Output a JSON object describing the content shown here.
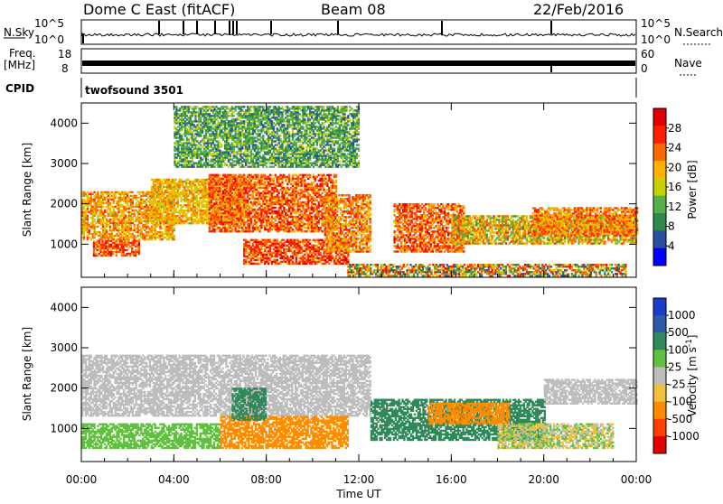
{
  "header": {
    "station": "Dome C East (fitACF)",
    "beam": "Beam 08",
    "date": "22/Feb/2016"
  },
  "strips": {
    "nsky_label": "N.Sky",
    "nsky_ticks": [
      "10^5",
      "10^0"
    ],
    "nsearch_label": "N.Search",
    "nsearch_ticks": [
      "10^5",
      "10^0"
    ],
    "freq_label": "Freq.",
    "freq_unit": "[MHz]",
    "freq_ticks": [
      "18",
      "8"
    ],
    "nave_label": "Nave",
    "nave_ticks": [
      "60",
      "0"
    ],
    "cpid_label": "CPID",
    "cpid_value": "twofsound 3501"
  },
  "colors": {
    "power": [
      "#0000ff",
      "#2a4fa0",
      "#2f8a4a",
      "#56b04a",
      "#c8d200",
      "#ffb000",
      "#ff6a00",
      "#ff2000",
      "#e00000"
    ],
    "velocity": [
      "#1a3cc8",
      "#2f5aa8",
      "#2f8a5a",
      "#62c040",
      "#bdbdbd",
      "#f0c040",
      "#ff8c00",
      "#ff4000",
      "#e00000"
    ]
  },
  "chart_data": [
    {
      "type": "heatmap",
      "title": "",
      "xlabel": "",
      "ylabel": "Slant Range [km]",
      "x_ticks": [
        "00:00",
        "04:00",
        "08:00",
        "12:00",
        "16:00",
        "20:00",
        "00:00"
      ],
      "y_ticks": [
        "4000",
        "3000",
        "2000",
        "1000"
      ],
      "xlim_hours": [
        0,
        24
      ],
      "ylim_km": [
        180,
        4500
      ],
      "colorbar_label": "Power [dB]",
      "colorbar_ticks": [
        "28",
        "24",
        "20",
        "16",
        "12",
        "8",
        "4"
      ],
      "colorbar_range": [
        0,
        32
      ],
      "regions": [
        {
          "t0": 0.0,
          "t1": 4.0,
          "r0": 1100,
          "r1": 2300,
          "v0": 14,
          "v1": 26
        },
        {
          "t0": 0.5,
          "t1": 2.5,
          "r0": 700,
          "r1": 1100,
          "v0": 20,
          "v1": 30
        },
        {
          "t0": 3.0,
          "t1": 7.0,
          "r0": 1500,
          "r1": 2600,
          "v0": 14,
          "v1": 24
        },
        {
          "t0": 5.5,
          "t1": 11.0,
          "r0": 1300,
          "r1": 2700,
          "v0": 18,
          "v1": 30
        },
        {
          "t0": 7.0,
          "t1": 11.5,
          "r0": 500,
          "r1": 1100,
          "v0": 20,
          "v1": 30
        },
        {
          "t0": 10.5,
          "t1": 12.5,
          "r0": 800,
          "r1": 2200,
          "v0": 16,
          "v1": 28
        },
        {
          "t0": 13.5,
          "t1": 16.5,
          "r0": 800,
          "r1": 2000,
          "v0": 18,
          "v1": 30
        },
        {
          "t0": 16.0,
          "t1": 24.0,
          "r0": 1000,
          "r1": 1700,
          "v0": 10,
          "v1": 26
        },
        {
          "t0": 19.5,
          "t1": 24.0,
          "r0": 1200,
          "r1": 1900,
          "v0": 16,
          "v1": 28
        },
        {
          "t0": 11.5,
          "t1": 23.5,
          "r0": 200,
          "r1": 500,
          "v0": 4,
          "v1": 30
        },
        {
          "t0": 4.0,
          "t1": 12.0,
          "r0": 2900,
          "r1": 4400,
          "v0": 6,
          "v1": 16
        }
      ]
    },
    {
      "type": "heatmap",
      "title": "",
      "xlabel": "Time UT",
      "ylabel": "Slant Range [km]",
      "x_ticks": [
        "00:00",
        "04:00",
        "08:00",
        "12:00",
        "16:00",
        "20:00",
        "00:00"
      ],
      "y_ticks": [
        "4000",
        "3000",
        "2000",
        "1000"
      ],
      "xlim_hours": [
        0,
        24
      ],
      "ylim_km": [
        180,
        4500
      ],
      "colorbar_label": "Velocity [m s^-1]",
      "colorbar_ticks": [
        "1000",
        "500",
        "100",
        "25",
        "-25",
        "-100",
        "-500",
        "-1000"
      ],
      "regions": [
        {
          "t0": 0.0,
          "t1": 12.5,
          "r0": 1300,
          "r1": 2800,
          "v0": -25,
          "v1": 25
        },
        {
          "t0": 6.0,
          "t1": 11.5,
          "r0": 500,
          "r1": 1300,
          "v0": -500,
          "v1": -100
        },
        {
          "t0": 6.5,
          "t1": 8.0,
          "r0": 1200,
          "r1": 2000,
          "v0": 100,
          "v1": 500
        },
        {
          "t0": 12.5,
          "t1": 20.0,
          "r0": 700,
          "r1": 1700,
          "v0": 100,
          "v1": 500
        },
        {
          "t0": 15.0,
          "t1": 18.5,
          "r0": 1100,
          "r1": 1600,
          "v0": -500,
          "v1": -100
        },
        {
          "t0": 20.0,
          "t1": 24.0,
          "r0": 1600,
          "r1": 2200,
          "v0": -25,
          "v1": 25
        },
        {
          "t0": 18.0,
          "t1": 23.0,
          "r0": 500,
          "r1": 1100,
          "v0": -100,
          "v1": 100
        },
        {
          "t0": 0.0,
          "t1": 6.0,
          "r0": 500,
          "r1": 1100,
          "v0": 25,
          "v1": 100
        }
      ]
    }
  ]
}
